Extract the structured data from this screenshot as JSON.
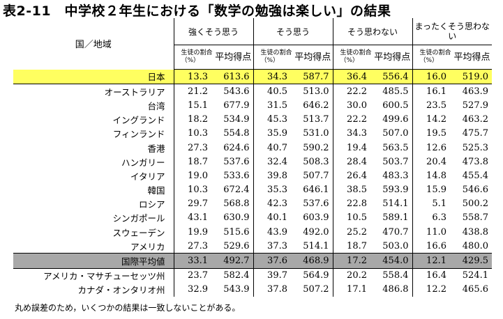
{
  "title": "表2-11　中学校２年生における「数学の勉強は楽しい」の結果",
  "header": {
    "country": "国／地域",
    "groups": [
      "強くそう思う",
      "そう思う",
      "そう思わない",
      "まったくそう思わない"
    ],
    "pct_label": "生徒の割合（%）",
    "score_label": "平均得点"
  },
  "rows": [
    {
      "name": "日本",
      "v": [
        "13.3",
        "613.6",
        "34.3",
        "587.7",
        "36.4",
        "556.4",
        "16.0",
        "519.0"
      ],
      "highlight": "yellow"
    },
    {
      "name": "オーストラリア",
      "v": [
        "21.2",
        "543.6",
        "40.5",
        "513.0",
        "22.2",
        "485.5",
        "16.1",
        "463.9"
      ]
    },
    {
      "name": "台湾",
      "v": [
        "15.1",
        "677.9",
        "31.5",
        "646.2",
        "30.0",
        "600.5",
        "23.5",
        "527.9"
      ]
    },
    {
      "name": "イングランド",
      "v": [
        "18.2",
        "534.9",
        "45.3",
        "513.7",
        "22.2",
        "499.6",
        "14.2",
        "463.2"
      ]
    },
    {
      "name": "フィンランド",
      "v": [
        "10.3",
        "554.8",
        "35.9",
        "531.0",
        "34.3",
        "507.0",
        "19.5",
        "475.7"
      ]
    },
    {
      "name": "香港",
      "v": [
        "27.3",
        "624.6",
        "40.7",
        "590.2",
        "19.4",
        "563.5",
        "12.6",
        "525.3"
      ]
    },
    {
      "name": "ハンガリー",
      "v": [
        "18.7",
        "537.6",
        "32.4",
        "508.3",
        "28.4",
        "503.7",
        "20.4",
        "473.8"
      ]
    },
    {
      "name": "イタリア",
      "v": [
        "19.0",
        "533.6",
        "39.8",
        "507.7",
        "26.4",
        "483.3",
        "14.8",
        "455.4"
      ]
    },
    {
      "name": "韓国",
      "v": [
        "10.3",
        "672.4",
        "35.3",
        "646.1",
        "38.5",
        "593.9",
        "15.9",
        "546.6"
      ]
    },
    {
      "name": "ロシア",
      "v": [
        "29.7",
        "568.8",
        "42.3",
        "537.6",
        "22.8",
        "514.1",
        "5.1",
        "500.2"
      ]
    },
    {
      "name": "シンガポール",
      "v": [
        "43.1",
        "630.9",
        "40.1",
        "603.9",
        "10.5",
        "589.1",
        "6.3",
        "558.7"
      ]
    },
    {
      "name": "スウェーデン",
      "v": [
        "19.9",
        "515.6",
        "43.9",
        "492.0",
        "25.2",
        "470.7",
        "11.0",
        "438.8"
      ]
    },
    {
      "name": "アメリカ",
      "v": [
        "27.3",
        "529.6",
        "37.3",
        "514.1",
        "18.7",
        "503.0",
        "16.6",
        "480.0"
      ]
    },
    {
      "name": "国際平均値",
      "v": [
        "33.1",
        "492.7",
        "37.6",
        "468.9",
        "17.2",
        "454.0",
        "12.1",
        "429.5"
      ],
      "highlight": "gray"
    },
    {
      "name": "アメリカ・マサチューセッツ州",
      "v": [
        "23.7",
        "582.4",
        "39.7",
        "564.9",
        "20.2",
        "558.4",
        "16.4",
        "524.1"
      ]
    },
    {
      "name": "カナダ・オンタリオ州",
      "v": [
        "32.9",
        "543.9",
        "37.8",
        "507.2",
        "17.1",
        "486.8",
        "12.2",
        "465.6"
      ]
    }
  ],
  "note": "丸め誤差のため，いくつかの結果は一致しないことがある。",
  "colors": {
    "japan_highlight": "#ffff60",
    "average_highlight": "#a8a8a8"
  }
}
